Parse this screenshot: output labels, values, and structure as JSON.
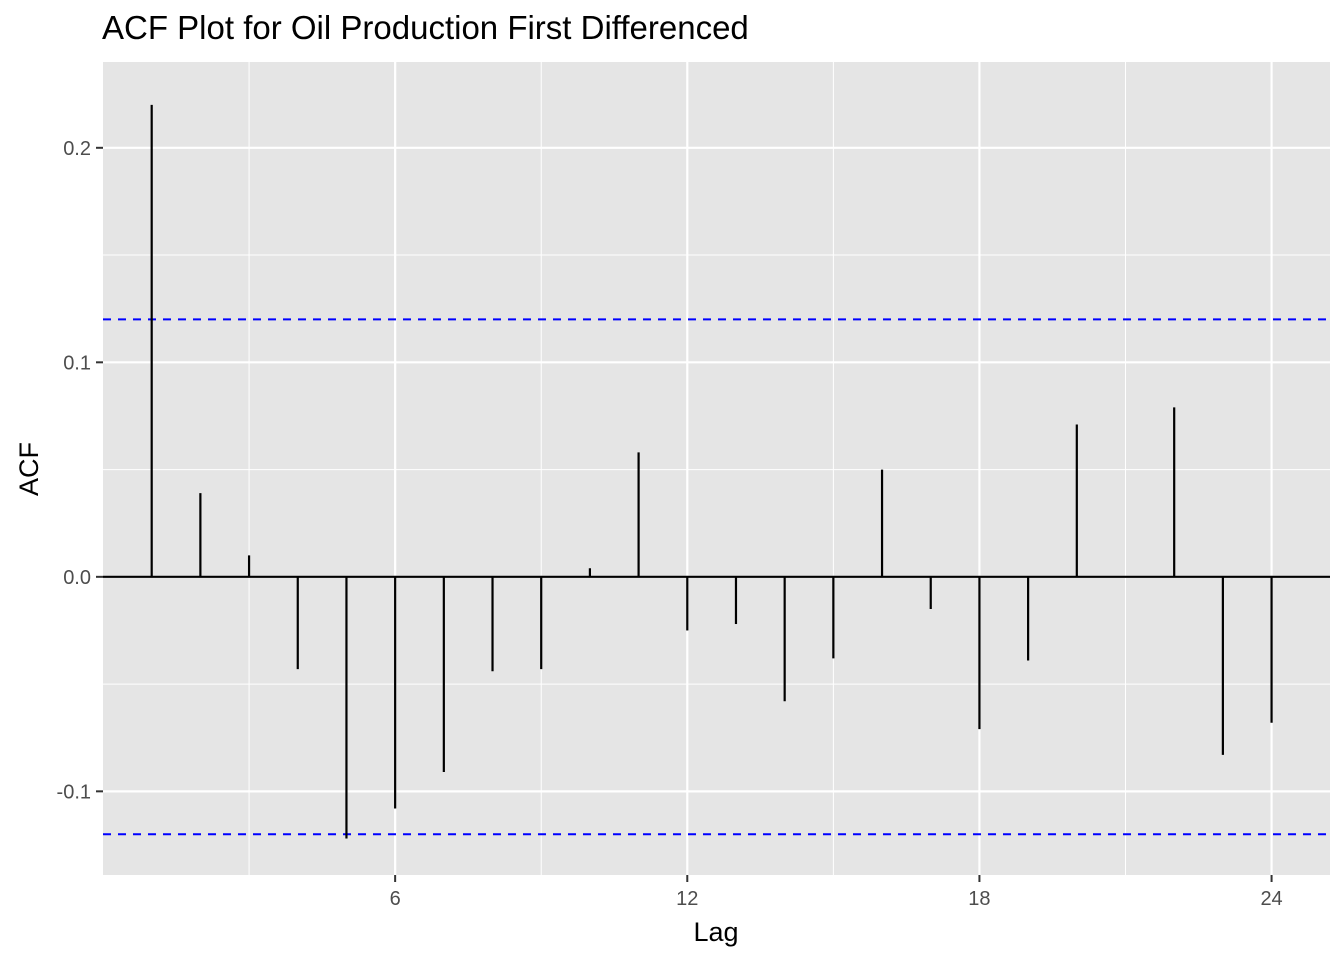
{
  "chart_data": {
    "type": "bar",
    "title": "ACF Plot for Oil Production First Differenced",
    "xlabel": "Lag",
    "ylabel": "ACF",
    "x": [
      1,
      2,
      3,
      4,
      5,
      6,
      7,
      8,
      9,
      10,
      11,
      12,
      13,
      14,
      15,
      16,
      17,
      18,
      19,
      20,
      21,
      22,
      23,
      24
    ],
    "values": [
      0.22,
      0.039,
      0.01,
      -0.043,
      -0.122,
      -0.108,
      -0.091,
      -0.044,
      -0.043,
      0.004,
      0.058,
      -0.025,
      -0.022,
      -0.058,
      -0.038,
      0.05,
      -0.015,
      -0.071,
      -0.039,
      0.071,
      0.0,
      0.079,
      -0.083,
      -0.068
    ],
    "confidence_limit": 0.12,
    "xlim": [
      0,
      25.2
    ],
    "ylim": [
      -0.139,
      0.24
    ],
    "x_ticks": [
      {
        "value": 6,
        "label": "6"
      },
      {
        "value": 12,
        "label": "12"
      },
      {
        "value": 18,
        "label": "18"
      },
      {
        "value": 24,
        "label": "24"
      }
    ],
    "y_ticks": [
      {
        "value": -0.1,
        "label": "-0.1"
      },
      {
        "value": 0.0,
        "label": "0.0"
      },
      {
        "value": 0.1,
        "label": "0.1"
      },
      {
        "value": 0.2,
        "label": "0.2"
      }
    ],
    "grid": true,
    "colors": {
      "panel": "#e5e5e5",
      "grid": "#ffffff",
      "bars": "#000000",
      "confidence": "#0000ff"
    }
  }
}
